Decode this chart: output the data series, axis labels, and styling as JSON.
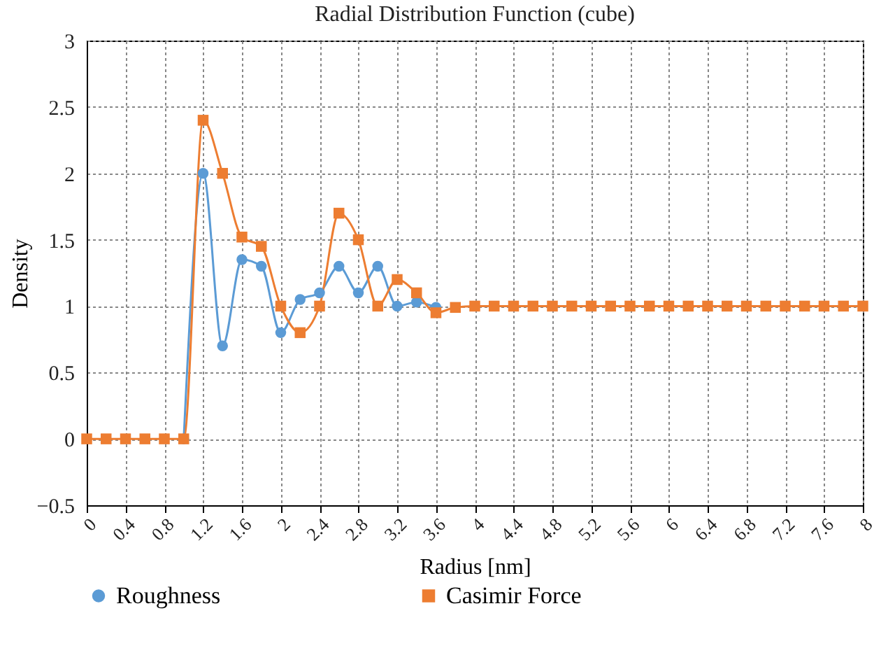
{
  "chart_data": {
    "type": "line",
    "title": "Radial Distribution Function (cube)",
    "xlabel": "Radius [nm]",
    "ylabel": "Density",
    "x": [
      0,
      0.2,
      0.4,
      0.6,
      0.8,
      1.0,
      1.2,
      1.4,
      1.6,
      1.8,
      2.0,
      2.2,
      2.4,
      2.6,
      2.8,
      3.0,
      3.2,
      3.4,
      3.6,
      3.8,
      4.0,
      4.2,
      4.4,
      4.6,
      4.8,
      5.0,
      5.2,
      5.4,
      5.6,
      5.8,
      6.0,
      6.2,
      6.4,
      6.6,
      6.8,
      7.0,
      7.2,
      7.4,
      7.6,
      7.8,
      8.0
    ],
    "series": [
      {
        "name": "Roughness",
        "color": "#5b9bd5",
        "marker": "circle",
        "values": [
          null,
          null,
          null,
          null,
          null,
          0,
          2.0,
          0.7,
          1.35,
          1.3,
          0.8,
          1.05,
          1.1,
          1.3,
          1.1,
          1.3,
          1.0,
          1.03,
          0.99,
          null,
          null,
          null,
          null,
          null,
          null,
          null,
          null,
          null,
          null,
          null,
          null,
          null,
          null,
          null,
          null,
          null,
          null,
          null,
          null,
          null,
          null
        ]
      },
      {
        "name": "Casimir Force",
        "color": "#ed7d31",
        "marker": "square",
        "values": [
          0,
          0,
          0,
          0,
          0,
          0,
          2.4,
          2.0,
          1.52,
          1.45,
          1.0,
          0.8,
          1.0,
          1.7,
          1.5,
          1.0,
          1.2,
          1.1,
          0.95,
          0.99,
          1,
          1,
          1,
          1,
          1,
          1,
          1,
          1,
          1,
          1,
          1,
          1,
          1,
          1,
          1,
          1,
          1,
          1,
          1,
          1,
          1
        ]
      }
    ],
    "xlim": [
      0,
      8
    ],
    "xticks": [
      0,
      0.4,
      0.8,
      1.2,
      1.6,
      2,
      2.4,
      2.8,
      3.2,
      3.6,
      4,
      4.4,
      4.8,
      5.2,
      5.6,
      6,
      6.4,
      6.8,
      7.2,
      7.6,
      8
    ],
    "ylim": [
      -0.5,
      3
    ],
    "yticks": [
      -0.5,
      0,
      0.5,
      1,
      1.5,
      2,
      2.5,
      3
    ],
    "grid": true,
    "legend": "bottom left",
    "line_style": "solid"
  }
}
